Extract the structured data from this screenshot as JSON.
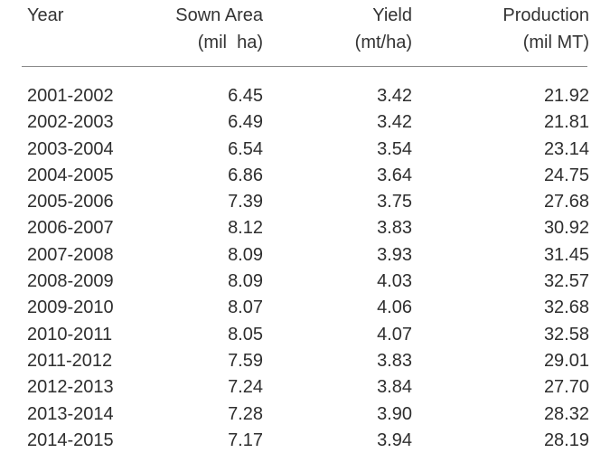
{
  "table": {
    "headers": {
      "year": [
        "Year"
      ],
      "sown_area": [
        "Sown Area",
        "(mil  ha)"
      ],
      "yield": [
        "Yield",
        "(mt/ha)"
      ],
      "production": [
        "Production",
        "(mil MT)"
      ]
    },
    "rows": [
      {
        "year": "2001-2002",
        "sown_area": "6.45",
        "yield": "3.42",
        "production": "21.92"
      },
      {
        "year": "2002-2003",
        "sown_area": "6.49",
        "yield": "3.42",
        "production": "21.81"
      },
      {
        "year": "2003-2004",
        "sown_area": "6.54",
        "yield": "3.54",
        "production": "23.14"
      },
      {
        "year": "2004-2005",
        "sown_area": "6.86",
        "yield": "3.64",
        "production": "24.75"
      },
      {
        "year": "2005-2006",
        "sown_area": "7.39",
        "yield": "3.75",
        "production": "27.68"
      },
      {
        "year": "2006-2007",
        "sown_area": "8.12",
        "yield": "3.83",
        "production": "30.92"
      },
      {
        "year": "2007-2008",
        "sown_area": "8.09",
        "yield": "3.93",
        "production": "31.45"
      },
      {
        "year": "2008-2009",
        "sown_area": "8.09",
        "yield": "4.03",
        "production": "32.57"
      },
      {
        "year": "2009-2010",
        "sown_area": "8.07",
        "yield": "4.06",
        "production": "32.68"
      },
      {
        "year": "2010-2011",
        "sown_area": "8.05",
        "yield": "4.07",
        "production": "32.58"
      },
      {
        "year": "2011-2012",
        "sown_area": "7.59",
        "yield": "3.83",
        "production": "29.01"
      },
      {
        "year": "2012-2013",
        "sown_area": "7.24",
        "yield": "3.84",
        "production": "27.70"
      },
      {
        "year": "2013-2014",
        "sown_area": "7.28",
        "yield": "3.90",
        "production": "28.32"
      },
      {
        "year": "2014-2015",
        "sown_area": "7.17",
        "yield": "3.94",
        "production": "28.19"
      }
    ]
  }
}
